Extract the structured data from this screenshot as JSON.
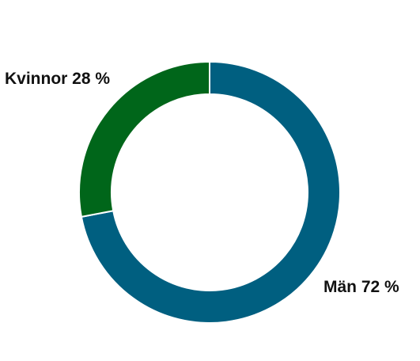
{
  "chart_data": {
    "type": "pie",
    "variant": "donut",
    "slices": [
      {
        "label": "Män 72 %",
        "name": "Män",
        "value": 72,
        "color": "#005f80"
      },
      {
        "label": "Kvinnor 28 %",
        "name": "Kvinnor",
        "value": 28,
        "color": "#00661a"
      }
    ],
    "title": "",
    "legend": "none",
    "slice_order": "clockwise from top"
  }
}
